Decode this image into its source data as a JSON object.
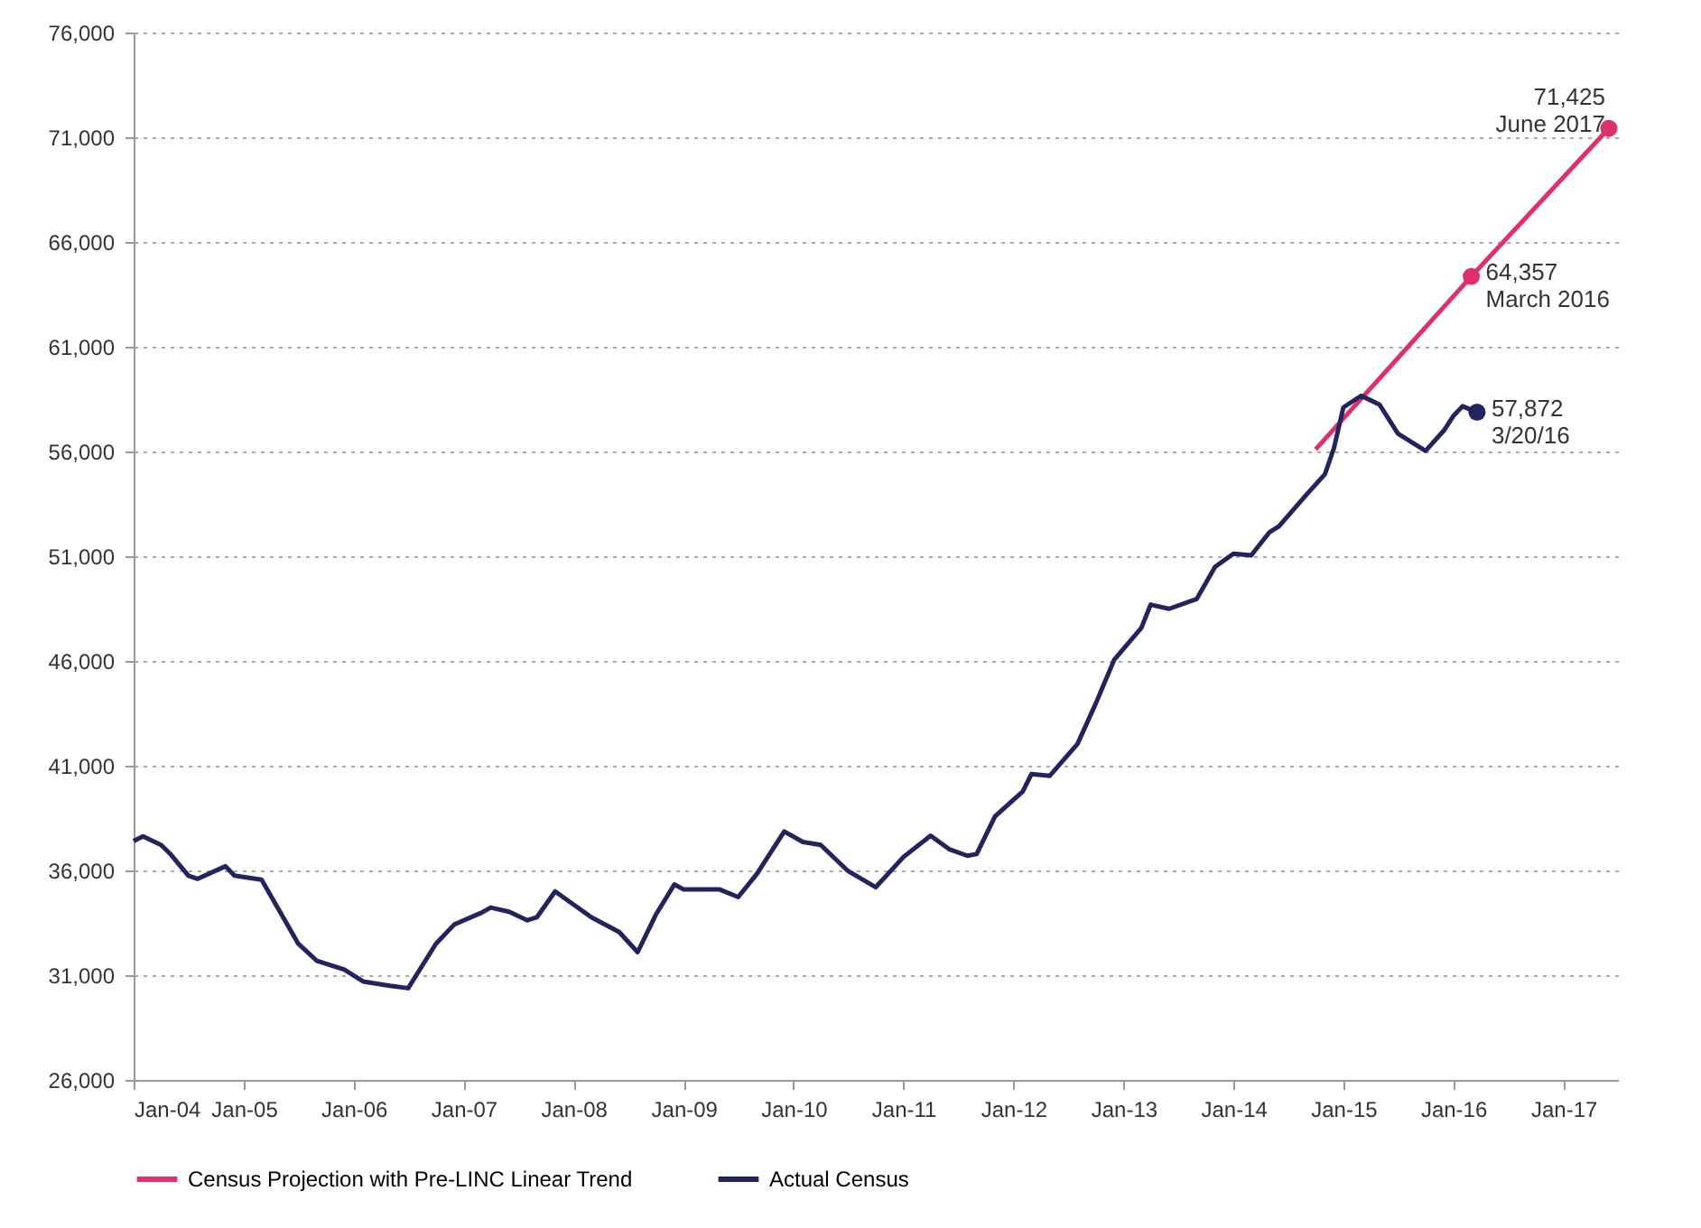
{
  "chart_data": {
    "type": "line",
    "series": [
      {
        "name": "Census Projection with Pre-LINC Linear Trend",
        "color": "#e0306a",
        "x": [
          "2014-10",
          "2016-03",
          "2017-06"
        ],
        "values": [
          56100,
          64357,
          71425
        ]
      },
      {
        "name": "Actual Census",
        "color": "#23235e",
        "x": [
          "2004-01",
          "2004-02",
          "2004-04",
          "2004-05",
          "2004-07",
          "2004-08",
          "2004-11",
          "2004-12",
          "2005-03",
          "2005-05",
          "2005-07",
          "2005-09",
          "2005-12",
          "2006-02",
          "2006-05",
          "2006-07",
          "2006-10",
          "2006-12",
          "2007-03",
          "2007-04",
          "2007-06",
          "2007-08",
          "2007-09",
          "2007-11",
          "2008-01",
          "2008-03",
          "2008-06",
          "2008-08",
          "2008-10",
          "2008-12",
          "2009-01",
          "2009-05",
          "2009-07",
          "2009-09",
          "2009-12",
          "2010-02",
          "2010-04",
          "2010-07",
          "2010-10",
          "2011-01",
          "2011-04",
          "2011-06",
          "2011-08",
          "2011-09",
          "2011-11",
          "2012-02",
          "2012-03",
          "2012-05",
          "2012-08",
          "2012-10",
          "2012-12",
          "2013-03",
          "2013-04",
          "2013-06",
          "2013-09",
          "2013-11",
          "2014-01",
          "2014-03",
          "2014-05",
          "2014-06",
          "2014-09",
          "2014-11",
          "2014-12",
          "2015-01",
          "2015-03",
          "2015-05",
          "2015-07",
          "2015-10",
          "2015-12",
          "2016-01",
          "2016-02",
          "2016-03-20"
        ],
        "values": [
          37400,
          37630,
          37220,
          36800,
          35750,
          35600,
          36200,
          35750,
          35560,
          34030,
          32500,
          31680,
          31260,
          30700,
          30490,
          30380,
          32500,
          33420,
          33980,
          34230,
          34030,
          33620,
          33760,
          35000,
          34370,
          33760,
          33060,
          32100,
          33900,
          35330,
          35090,
          35090,
          34730,
          35830,
          37860,
          37360,
          37220,
          35970,
          35200,
          36640,
          37660,
          37020,
          36700,
          36780,
          38580,
          39770,
          40600,
          40520,
          42040,
          43980,
          46060,
          47580,
          48690,
          48490,
          48960,
          50490,
          51120,
          51040,
          52150,
          52430,
          53950,
          54920,
          56170,
          58100,
          58660,
          58240,
          56860,
          56030,
          57000,
          57690,
          58160,
          57872
        ]
      }
    ],
    "xlim": [
      "2004-01",
      "2017-07"
    ],
    "xticks": [
      {
        "value": "2004-01",
        "label": "Jan-04"
      },
      {
        "value": "2005-01",
        "label": "Jan-05"
      },
      {
        "value": "2006-01",
        "label": "Jan-06"
      },
      {
        "value": "2007-01",
        "label": "Jan-07"
      },
      {
        "value": "2008-01",
        "label": "Jan-08"
      },
      {
        "value": "2009-01",
        "label": "Jan-09"
      },
      {
        "value": "2010-01",
        "label": "Jan-10"
      },
      {
        "value": "2011-01",
        "label": "Jan-11"
      },
      {
        "value": "2012-01",
        "label": "Jan-12"
      },
      {
        "value": "2013-01",
        "label": "Jan-13"
      },
      {
        "value": "2014-01",
        "label": "Jan-14"
      },
      {
        "value": "2015-01",
        "label": "Jan-15"
      },
      {
        "value": "2016-01",
        "label": "Jan-16"
      },
      {
        "value": "2017-01",
        "label": "Jan-17"
      }
    ],
    "ylim": [
      26000,
      76000
    ],
    "yticks": [
      {
        "value": 26000,
        "label": "26,000"
      },
      {
        "value": 31000,
        "label": "31,000"
      },
      {
        "value": 36000,
        "label": "36,000"
      },
      {
        "value": 41000,
        "label": "41,000"
      },
      {
        "value": 46000,
        "label": "46,000"
      },
      {
        "value": 51000,
        "label": "51,000"
      },
      {
        "value": 56000,
        "label": "56,000"
      },
      {
        "value": 61000,
        "label": "61,000"
      },
      {
        "value": 66000,
        "label": "66,000"
      },
      {
        "value": 71000,
        "label": "71,000"
      },
      {
        "value": 76000,
        "label": "76,000"
      }
    ],
    "annotations": [
      {
        "text": "71,425\nJune 2017",
        "x": "2017-06",
        "y": 71425
      },
      {
        "text": "64,357\nMarch 2016",
        "x": "2016-03",
        "y": 64357
      },
      {
        "text": "57,872\n3/20/16",
        "x": "2016-03-20",
        "y": 57872
      }
    ],
    "grid": "y",
    "legend": "bottom",
    "line_style": "solid"
  }
}
